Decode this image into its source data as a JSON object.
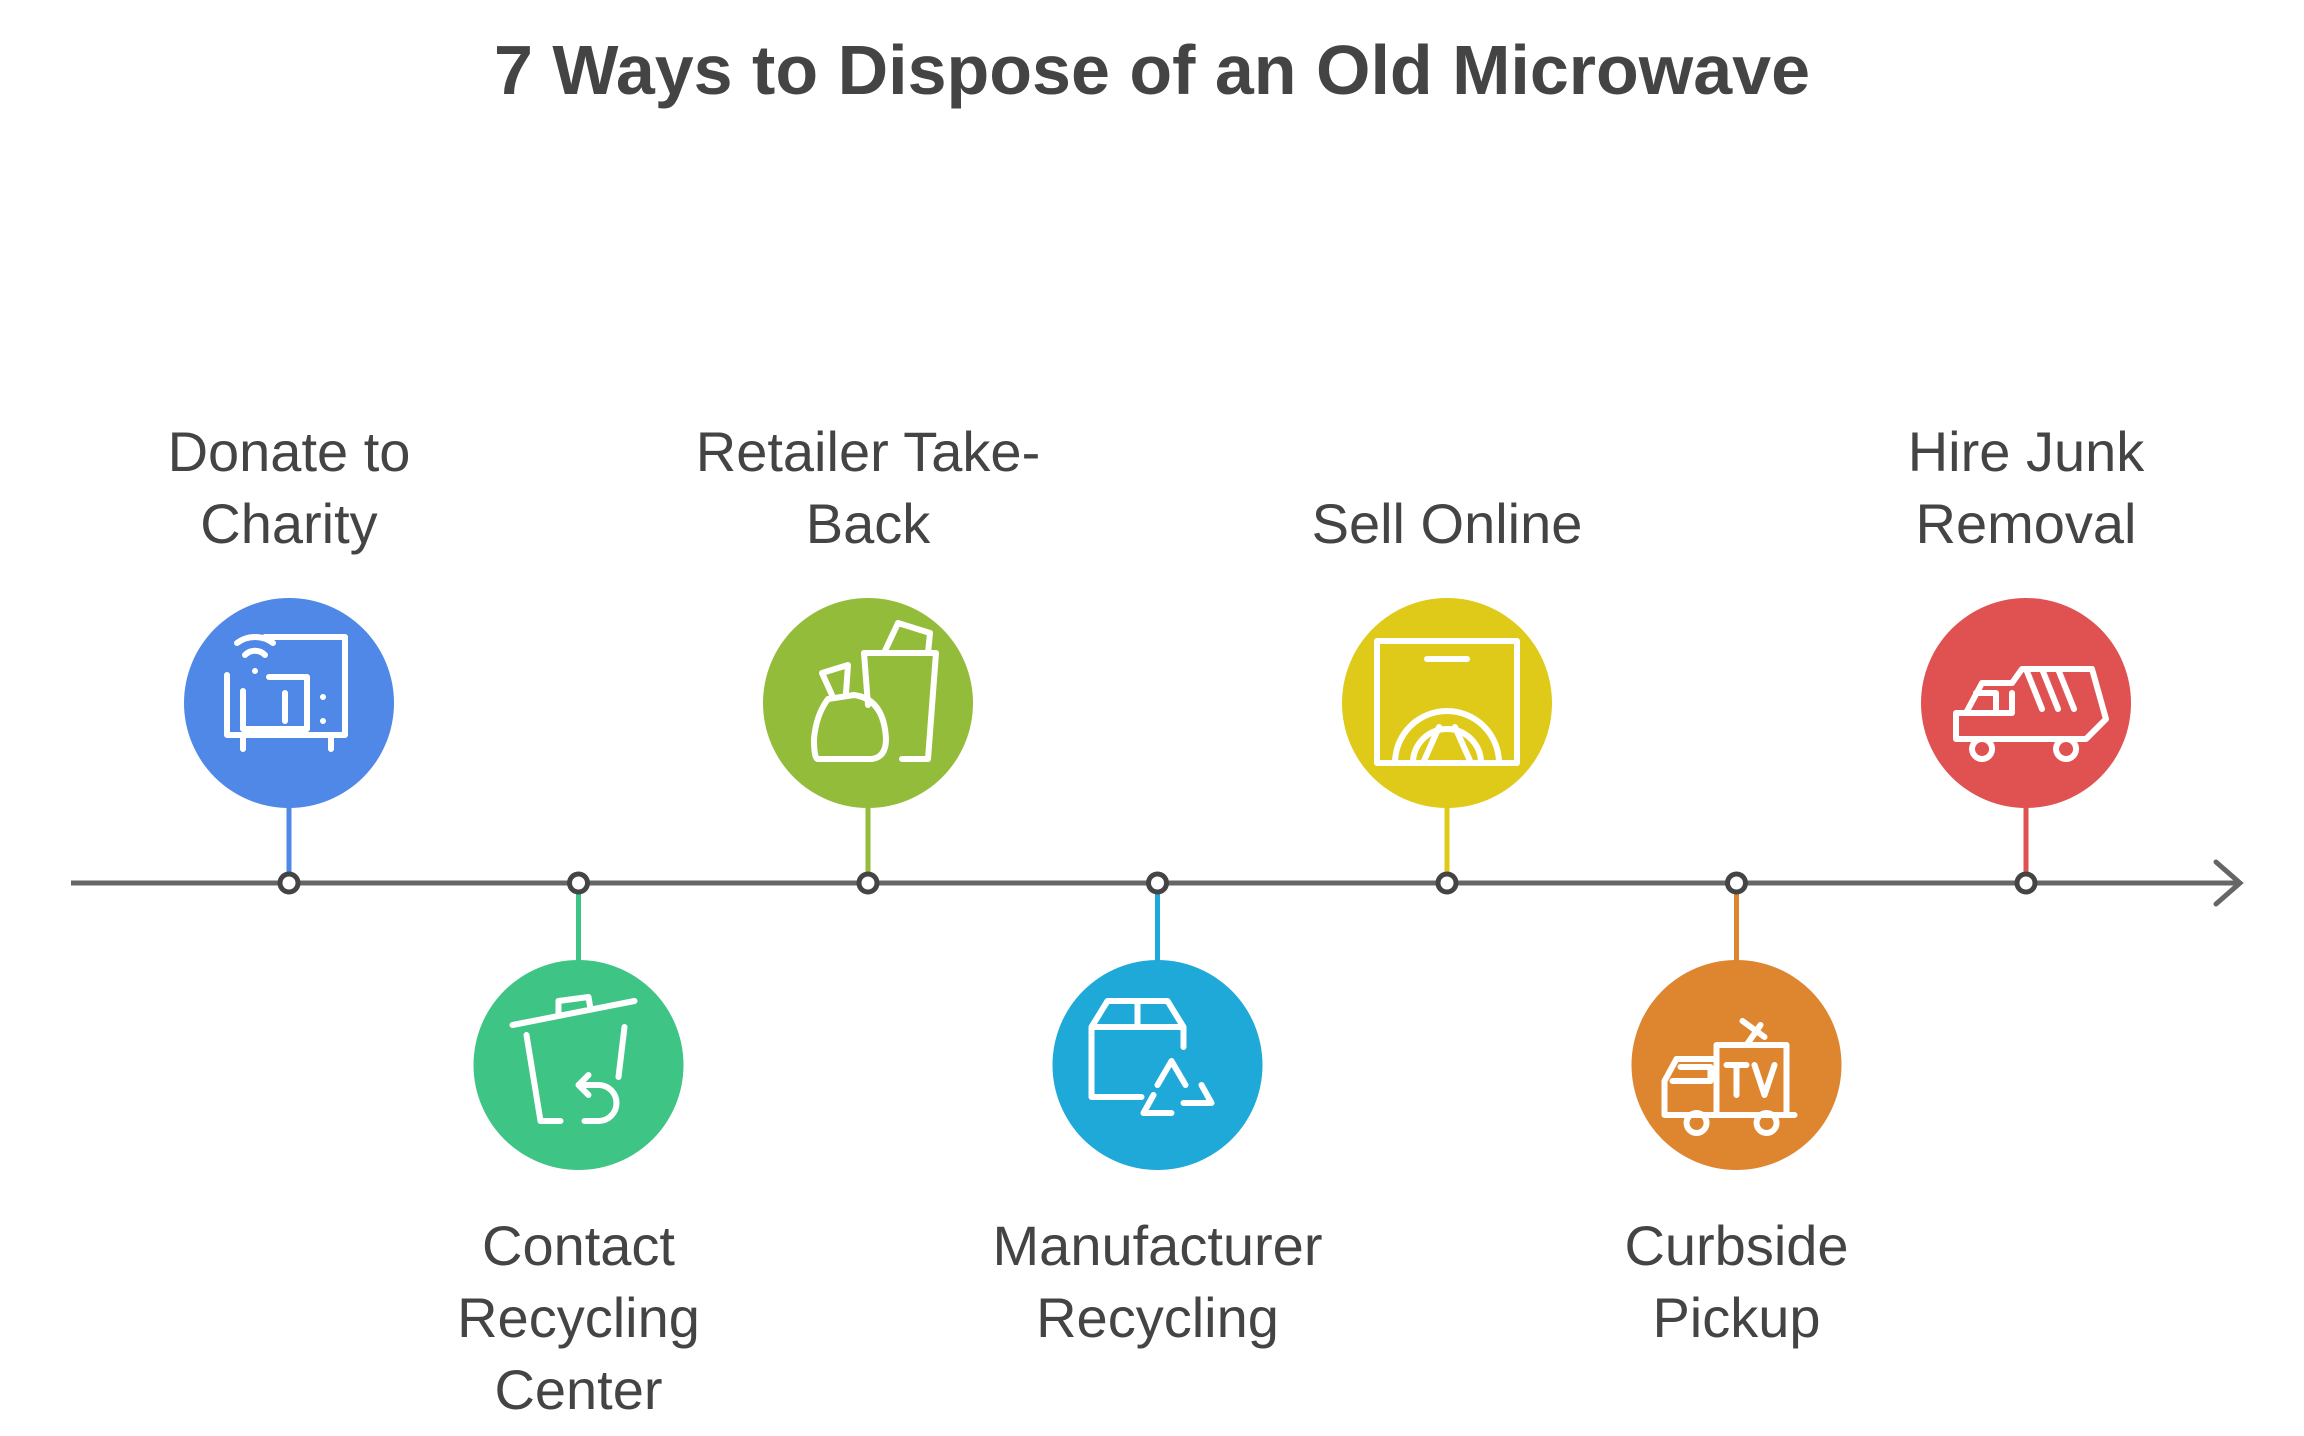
{
  "title": "7 Ways to Dispose of an Old Microwave",
  "axis_color": "#666666",
  "steps": [
    {
      "label": "Donate to Charity",
      "lines": [
        "Donate to",
        "Charity"
      ],
      "position": "top",
      "color": "#4F88E6",
      "icon": "smart-microwave-icon"
    },
    {
      "label": "Contact Recycling Center",
      "lines": [
        "Contact",
        "Recycling",
        "Center"
      ],
      "position": "bottom",
      "color": "#3EC484",
      "icon": "recycling-bin-icon"
    },
    {
      "label": "Retailer Take-Back",
      "lines": [
        "Retailer Take-",
        "Back"
      ],
      "position": "top",
      "color": "#93BC3B",
      "icon": "shopping-bag-icon"
    },
    {
      "label": "Manufacturer Recycling",
      "lines": [
        "Manufacturer",
        "Recycling"
      ],
      "position": "bottom",
      "color": "#1FA9D9",
      "icon": "box-recycle-icon"
    },
    {
      "label": "Sell Online",
      "lines": [
        "Sell Online"
      ],
      "position": "top",
      "color": "#DFCA19",
      "icon": "appliance-icon"
    },
    {
      "label": "Curbside Pickup",
      "lines": [
        "Curbside",
        "Pickup"
      ],
      "position": "bottom",
      "color": "#DE8530",
      "icon": "tv-van-icon"
    },
    {
      "label": "Hire Junk Removal",
      "lines": [
        "Hire Junk",
        "Removal"
      ],
      "position": "top",
      "color": "#E05252",
      "icon": "dump-truck-icon"
    }
  ]
}
